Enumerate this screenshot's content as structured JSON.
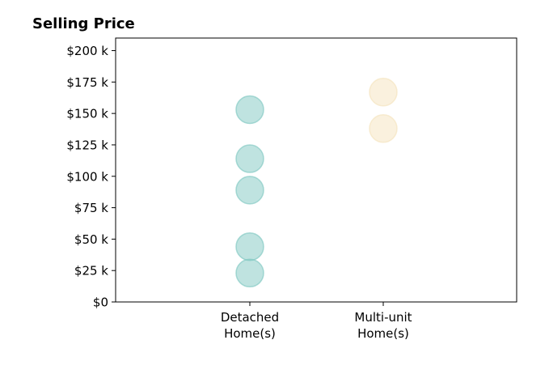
{
  "chart_data": {
    "type": "scatter",
    "title": "Selling Price",
    "xlabel": "",
    "ylabel": "",
    "categories": [
      "Detached\nHome(s)",
      "Multi-unit\nHome(s)"
    ],
    "y_ticks": [
      0,
      25000,
      50000,
      75000,
      100000,
      125000,
      150000,
      175000,
      200000
    ],
    "y_tick_labels": [
      "$0",
      "$25 k",
      "$50 k",
      "$75 k",
      "$100 k",
      "$125 k",
      "$150 k",
      "$175 k",
      "$200 k"
    ],
    "ylim": [
      0,
      210000
    ],
    "grid": false,
    "series": [
      {
        "category": "Detached\nHome(s)",
        "color": "#7fc7c1",
        "values": [
          153000,
          114000,
          89000,
          44000,
          23000
        ]
      },
      {
        "category": "Multi-unit\nHome(s)",
        "color": "#f5e3bd",
        "values": [
          167000,
          138000
        ]
      }
    ]
  }
}
